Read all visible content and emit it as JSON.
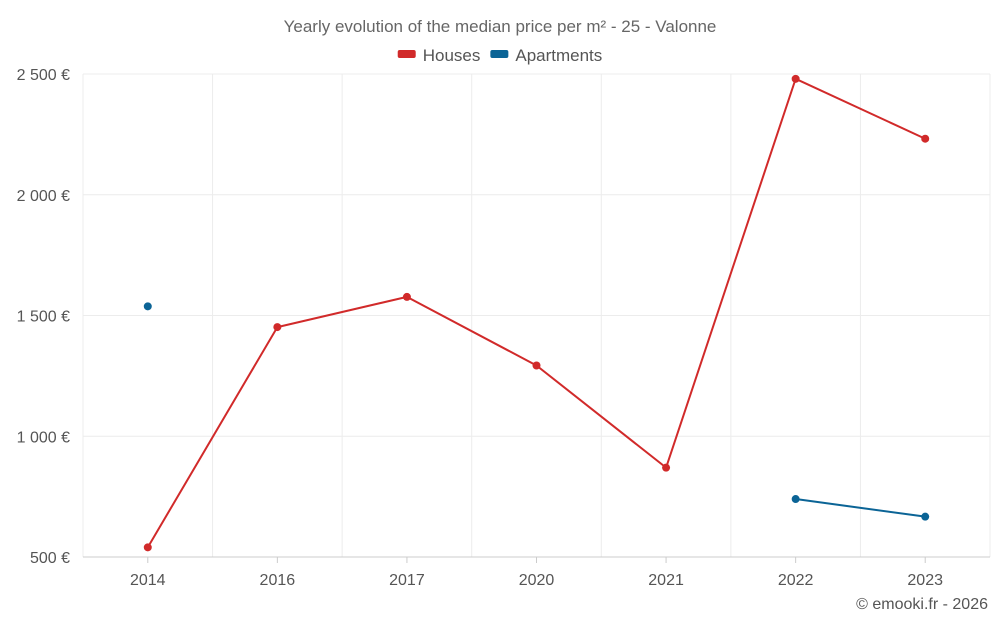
{
  "chart_data": {
    "type": "line",
    "title": "Yearly evolution of the median price per m² - 25 - Valonne",
    "categories": [
      "2014",
      "2016",
      "2017",
      "2020",
      "2021",
      "2022",
      "2023"
    ],
    "y_ticks": [
      500,
      1000,
      1500,
      2000,
      2500
    ],
    "y_tick_labels": [
      "500 €",
      "1 000 €",
      "1 500 €",
      "2 000 €",
      "2 500 €"
    ],
    "ylim": [
      500,
      2500
    ],
    "grid": true,
    "legend_position": "top-center",
    "series": [
      {
        "name": "Houses",
        "color": "#d12a2a",
        "values": [
          540,
          1452,
          1577,
          1293,
          870,
          2480,
          2232
        ]
      },
      {
        "name": "Apartments",
        "color": "#0b6496",
        "values": [
          1538,
          null,
          null,
          null,
          null,
          740,
          667
        ]
      }
    ],
    "credit": "© emooki.fr - 2026"
  }
}
